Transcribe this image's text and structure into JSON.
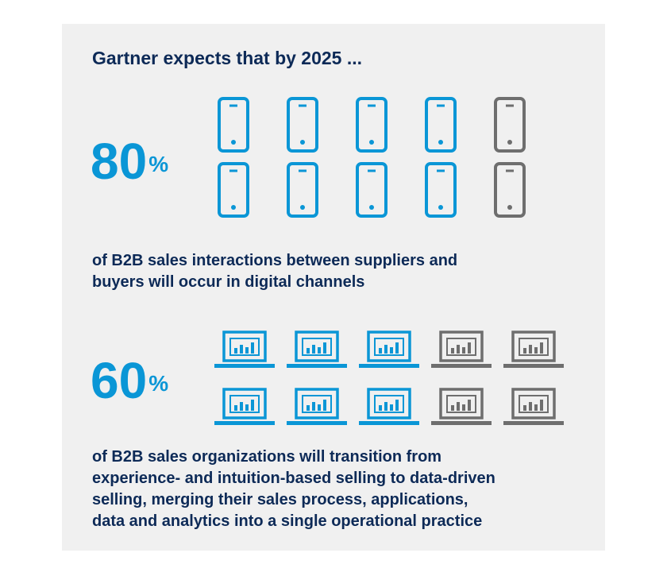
{
  "title": "Gartner expects that by 2025 ...",
  "colors": {
    "filled": "#0a96d6",
    "empty": "#6e6e6e",
    "text": "#0d2a57",
    "background": "#f0f0f0"
  },
  "chart_data": [
    {
      "type": "pictogram",
      "icon": "smartphone-icon",
      "value_percent": 80,
      "total_icons": 10,
      "filled_icons": 8,
      "stat_number": "80",
      "stat_unit": "%",
      "description_lines": [
        "of B2B sales interactions between suppliers and",
        "buyers will occur in digital channels"
      ]
    },
    {
      "type": "pictogram",
      "icon": "laptop-chart-icon",
      "value_percent": 60,
      "total_icons": 10,
      "filled_icons": 6,
      "stat_number": "60",
      "stat_unit": "%",
      "description_lines": [
        "of B2B sales organizations will transition from",
        "experience- and intuition-based selling to data-driven",
        "selling, merging their sales process, applications,",
        "data and analytics into a single operational practice"
      ]
    }
  ]
}
